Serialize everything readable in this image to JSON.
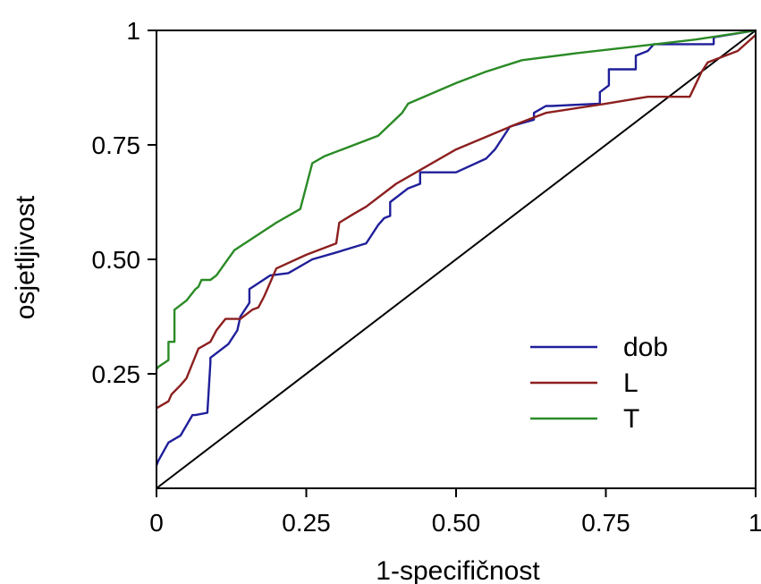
{
  "chart_data": {
    "type": "line",
    "xlabel": "1-specifičnost",
    "ylabel": "osjetljivost",
    "xlim": [
      0,
      1
    ],
    "ylim": [
      0,
      1
    ],
    "x_ticks": [
      {
        "value": 0,
        "label": "0"
      },
      {
        "value": 0.25,
        "label": "0.25"
      },
      {
        "value": 0.5,
        "label": "0.50"
      },
      {
        "value": 0.75,
        "label": "0.75"
      },
      {
        "value": 1,
        "label": "1"
      }
    ],
    "y_ticks": [
      {
        "value": 0.25,
        "label": "0.25"
      },
      {
        "value": 0.5,
        "label": "0.50"
      },
      {
        "value": 0.75,
        "label": "0.75"
      },
      {
        "value": 1,
        "label": "1"
      }
    ],
    "grid": false,
    "legend_position": "bottom-right",
    "reference_line": {
      "x": [
        0,
        1
      ],
      "y": [
        0,
        1
      ],
      "color": "#000000"
    },
    "series": [
      {
        "name": "dob",
        "color": "#1f1f9a",
        "x": [
          0,
          0.003,
          0.02,
          0.04,
          0.06,
          0.065,
          0.085,
          0.09,
          0.09,
          0.12,
          0.135,
          0.14,
          0.155,
          0.155,
          0.19,
          0.22,
          0.26,
          0.3,
          0.35,
          0.37,
          0.38,
          0.39,
          0.39,
          0.42,
          0.44,
          0.44,
          0.5,
          0.55,
          0.565,
          0.59,
          0.63,
          0.63,
          0.65,
          0.66,
          0.74,
          0.74,
          0.755,
          0.755,
          0.8,
          0.8,
          0.82,
          0.83,
          0.93,
          0.93,
          1
        ],
        "y": [
          0.05,
          0.06,
          0.1,
          0.115,
          0.16,
          0.16,
          0.165,
          0.275,
          0.285,
          0.315,
          0.345,
          0.375,
          0.405,
          0.435,
          0.465,
          0.47,
          0.5,
          0.515,
          0.535,
          0.575,
          0.59,
          0.595,
          0.625,
          0.655,
          0.665,
          0.69,
          0.69,
          0.72,
          0.74,
          0.79,
          0.805,
          0.82,
          0.835,
          0.835,
          0.84,
          0.865,
          0.88,
          0.915,
          0.915,
          0.945,
          0.955,
          0.97,
          0.97,
          0.985,
          1
        ]
      },
      {
        "name": "L",
        "color": "#8c1f1f",
        "x": [
          0,
          0.02,
          0.025,
          0.04,
          0.05,
          0.07,
          0.09,
          0.1,
          0.115,
          0.14,
          0.16,
          0.17,
          0.18,
          0.2,
          0.25,
          0.3,
          0.305,
          0.33,
          0.35,
          0.4,
          0.42,
          0.5,
          0.6,
          0.65,
          0.75,
          0.82,
          0.87,
          0.89,
          0.91,
          0.92,
          0.97,
          1
        ],
        "y": [
          0.175,
          0.19,
          0.205,
          0.225,
          0.24,
          0.305,
          0.32,
          0.345,
          0.37,
          0.37,
          0.39,
          0.395,
          0.42,
          0.48,
          0.51,
          0.535,
          0.58,
          0.6,
          0.615,
          0.665,
          0.68,
          0.74,
          0.795,
          0.82,
          0.84,
          0.855,
          0.855,
          0.855,
          0.91,
          0.93,
          0.955,
          0.99
        ]
      },
      {
        "name": "T",
        "color": "#2a8a25",
        "x": [
          0,
          0.003,
          0.02,
          0.02,
          0.03,
          0.03,
          0.05,
          0.065,
          0.07,
          0.075,
          0.09,
          0.1,
          0.13,
          0.2,
          0.24,
          0.26,
          0.28,
          0.37,
          0.41,
          0.42,
          0.5,
          0.55,
          0.61,
          0.7,
          0.8,
          0.9,
          1
        ],
        "y": [
          0.26,
          0.265,
          0.28,
          0.32,
          0.32,
          0.39,
          0.41,
          0.435,
          0.44,
          0.455,
          0.455,
          0.465,
          0.52,
          0.58,
          0.61,
          0.71,
          0.725,
          0.77,
          0.82,
          0.84,
          0.885,
          0.91,
          0.935,
          0.95,
          0.965,
          0.98,
          1
        ]
      }
    ]
  }
}
